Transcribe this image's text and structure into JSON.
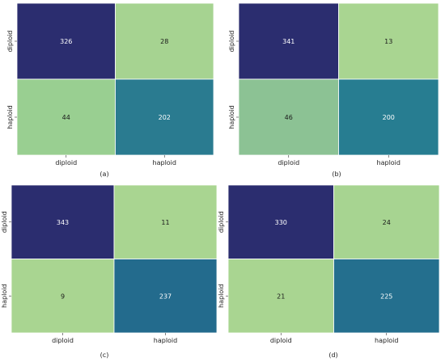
{
  "chart_data": [
    {
      "type": "heatmap",
      "caption": "(a)",
      "rows": [
        "diploid",
        "haploid"
      ],
      "columns": [
        "diploid",
        "haploid"
      ],
      "values": [
        [
          326,
          28
        ],
        [
          44,
          202
        ]
      ],
      "colors": [
        [
          "#2b2d6f",
          "#a6d391"
        ],
        [
          "#99cf91",
          "#2a7b90"
        ]
      ]
    },
    {
      "type": "heatmap",
      "caption": "(b)",
      "rows": [
        "diploid",
        "haploid"
      ],
      "columns": [
        "diploid",
        "haploid"
      ],
      "values": [
        [
          341,
          13
        ],
        [
          46,
          200
        ]
      ],
      "colors": [
        [
          "#2b2d6f",
          "#a9d591"
        ],
        [
          "#8cc294",
          "#277d91"
        ]
      ]
    },
    {
      "type": "heatmap",
      "caption": "(c)",
      "rows": [
        "diploid",
        "haploid"
      ],
      "columns": [
        "diploid",
        "haploid"
      ],
      "values": [
        [
          343,
          11
        ],
        [
          9,
          237
        ]
      ],
      "colors": [
        [
          "#2b2d6f",
          "#a9d591"
        ],
        [
          "#a9d591",
          "#236b8d"
        ]
      ]
    },
    {
      "type": "heatmap",
      "caption": "(d)",
      "rows": [
        "diploid",
        "haploid"
      ],
      "columns": [
        "diploid",
        "haploid"
      ],
      "values": [
        [
          330,
          24
        ],
        [
          21,
          225
        ]
      ],
      "colors": [
        [
          "#2b2d6f",
          "#a7d491"
        ],
        [
          "#a9d591",
          "#246f8e"
        ]
      ]
    }
  ]
}
